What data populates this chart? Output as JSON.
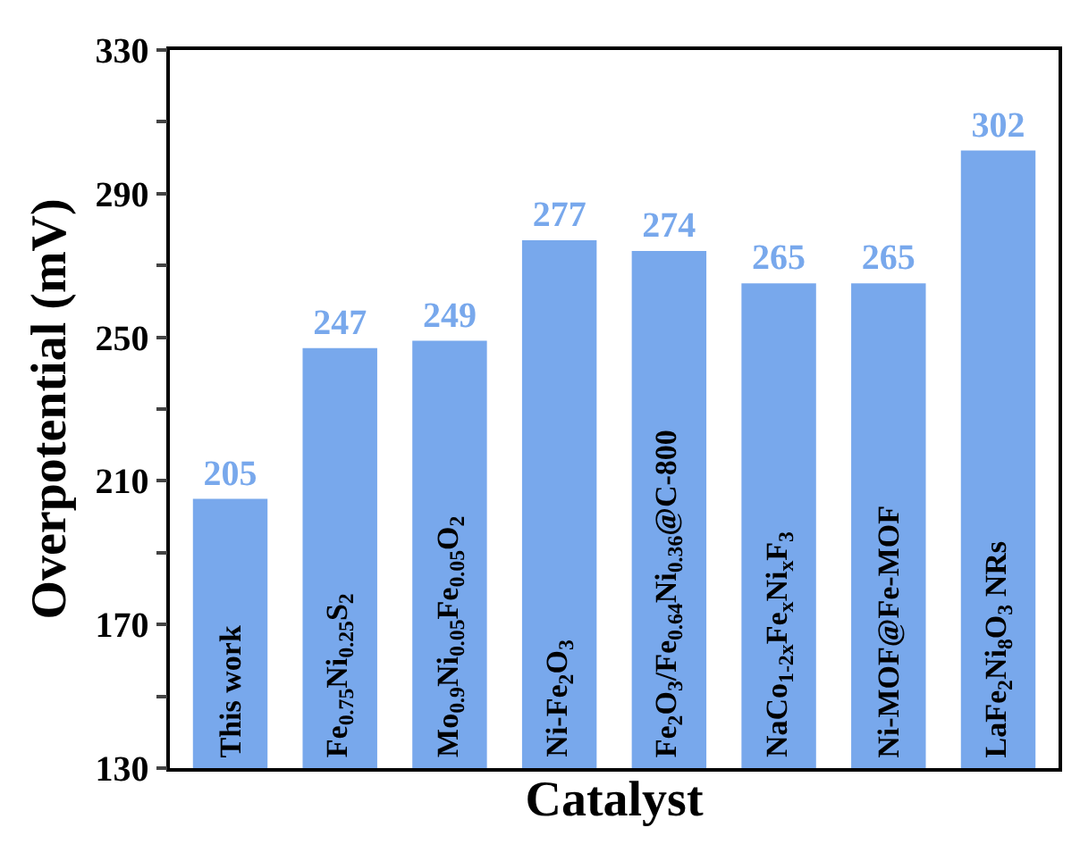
{
  "chart_data": {
    "type": "bar",
    "xlabel": "Catalyst",
    "ylabel": "Overpotential (mV)",
    "categories": [
      "This work",
      "Fe$_{0.75}$Ni$_{0.25}$S$_{2}$",
      "Mo$_{0.9}$Ni$_{0.05}$Fe$_{0.05}$O$_{2}$",
      "Ni-Fe$_{2}$O$_{3}$",
      "Fe$_{2}$O$_{3}$/Fe$_{0.64}$Ni$_{0.36}$@C-800",
      "NaCo$_{1-2x}$Fe$_{x}$Ni$_{x}$F$_{3}$",
      "Ni-MOF@Fe-MOF",
      "LaFe$_{2}$Ni$_{8}$O$_{3}$ NRs"
    ],
    "values": [
      205,
      247,
      249,
      277,
      274,
      265,
      265,
      302
    ],
    "color": "#78a8ec",
    "ylim": [
      130,
      330
    ],
    "yticks": [
      130,
      {
        "value": 150,
        "label": null
      },
      170,
      {
        "value": 190,
        "label": null
      },
      210,
      {
        "value": 230,
        "label": null
      },
      250,
      {
        "value": 270,
        "label": null
      },
      290,
      {
        "value": 310,
        "label": null
      },
      330
    ],
    "data_labels": true,
    "grid": false,
    "legend": false
  }
}
